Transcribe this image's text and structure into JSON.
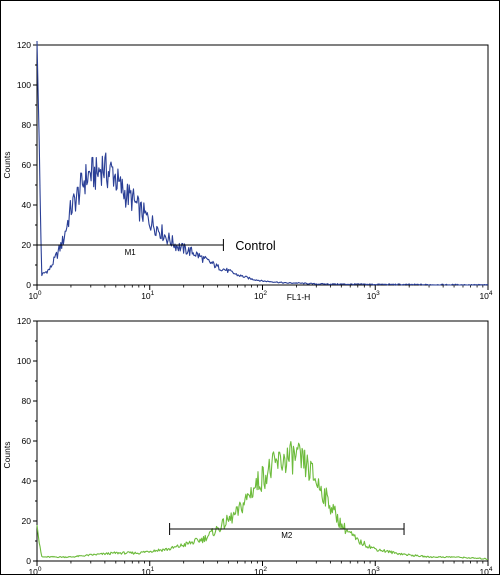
{
  "chart_data": [
    {
      "type": "line",
      "panel": "top",
      "xscale": "log",
      "xlim": [
        1,
        10000
      ],
      "ylim": [
        0,
        120
      ],
      "xlabel": "FL1-H",
      "ylabel": "Counts",
      "x_ticks": [
        "10",
        "10",
        "10",
        "10",
        "10"
      ],
      "x_tick_exponents": [
        "0",
        "1",
        "2",
        "3",
        "4"
      ],
      "y_ticks": [
        "0",
        "20",
        "40",
        "60",
        "80",
        "100",
        "120"
      ],
      "series_color": "#2a3f96",
      "series": [
        {
          "x": [
            1,
            1.1,
            1.3,
            1.5,
            1.7,
            2,
            2.3,
            2.6,
            3,
            3.4,
            3.8,
            4.2,
            4.7,
            5.3,
            6,
            7,
            8,
            9,
            10,
            12,
            14,
            17,
            20,
            25,
            30,
            35,
            40,
            50,
            60,
            70,
            80,
            100,
            130,
            160,
            200,
            300,
            1000,
            10000
          ],
          "y": [
            122,
            5,
            8,
            15,
            22,
            38,
            45,
            52,
            56,
            55,
            60,
            56,
            57,
            50,
            46,
            43,
            38,
            35,
            32,
            28,
            24,
            20,
            18,
            16,
            13,
            11,
            9,
            7,
            5,
            4,
            3,
            2,
            1.5,
            1,
            1,
            0.5,
            0.3,
            0
          ]
        }
      ],
      "gate": {
        "label": "M1",
        "x_start": 1,
        "x_end": 45,
        "y": 20
      },
      "annotation": "Control"
    },
    {
      "type": "line",
      "panel": "bottom",
      "xscale": "log",
      "xlim": [
        1,
        10000
      ],
      "ylim": [
        0,
        120
      ],
      "xlabel": "",
      "ylabel": "Counts",
      "x_ticks": [
        "10",
        "10",
        "10",
        "10",
        "10"
      ],
      "x_tick_exponents": [
        "0",
        "1",
        "2",
        "3",
        "4"
      ],
      "y_ticks": [
        "0",
        "20",
        "40",
        "60",
        "80",
        "100",
        "120"
      ],
      "series_color": "#6dbb3c",
      "series": [
        {
          "x": [
            1,
            1.1,
            1.5,
            2,
            3,
            5,
            8,
            10,
            15,
            20,
            30,
            40,
            60,
            80,
            100,
            130,
            160,
            200,
            250,
            300,
            400,
            500,
            700,
            1000,
            1500,
            2000,
            3000,
            5000,
            10000
          ],
          "y": [
            18,
            2,
            2,
            2,
            3,
            4,
            4,
            5,
            6,
            8,
            11,
            16,
            24,
            35,
            42,
            48,
            51,
            52,
            47,
            40,
            28,
            18,
            10,
            6,
            4,
            3,
            2,
            2,
            1
          ]
        }
      ],
      "gate": {
        "label": "M2",
        "x_start": 15,
        "x_end": 1800,
        "y": 16
      }
    }
  ]
}
